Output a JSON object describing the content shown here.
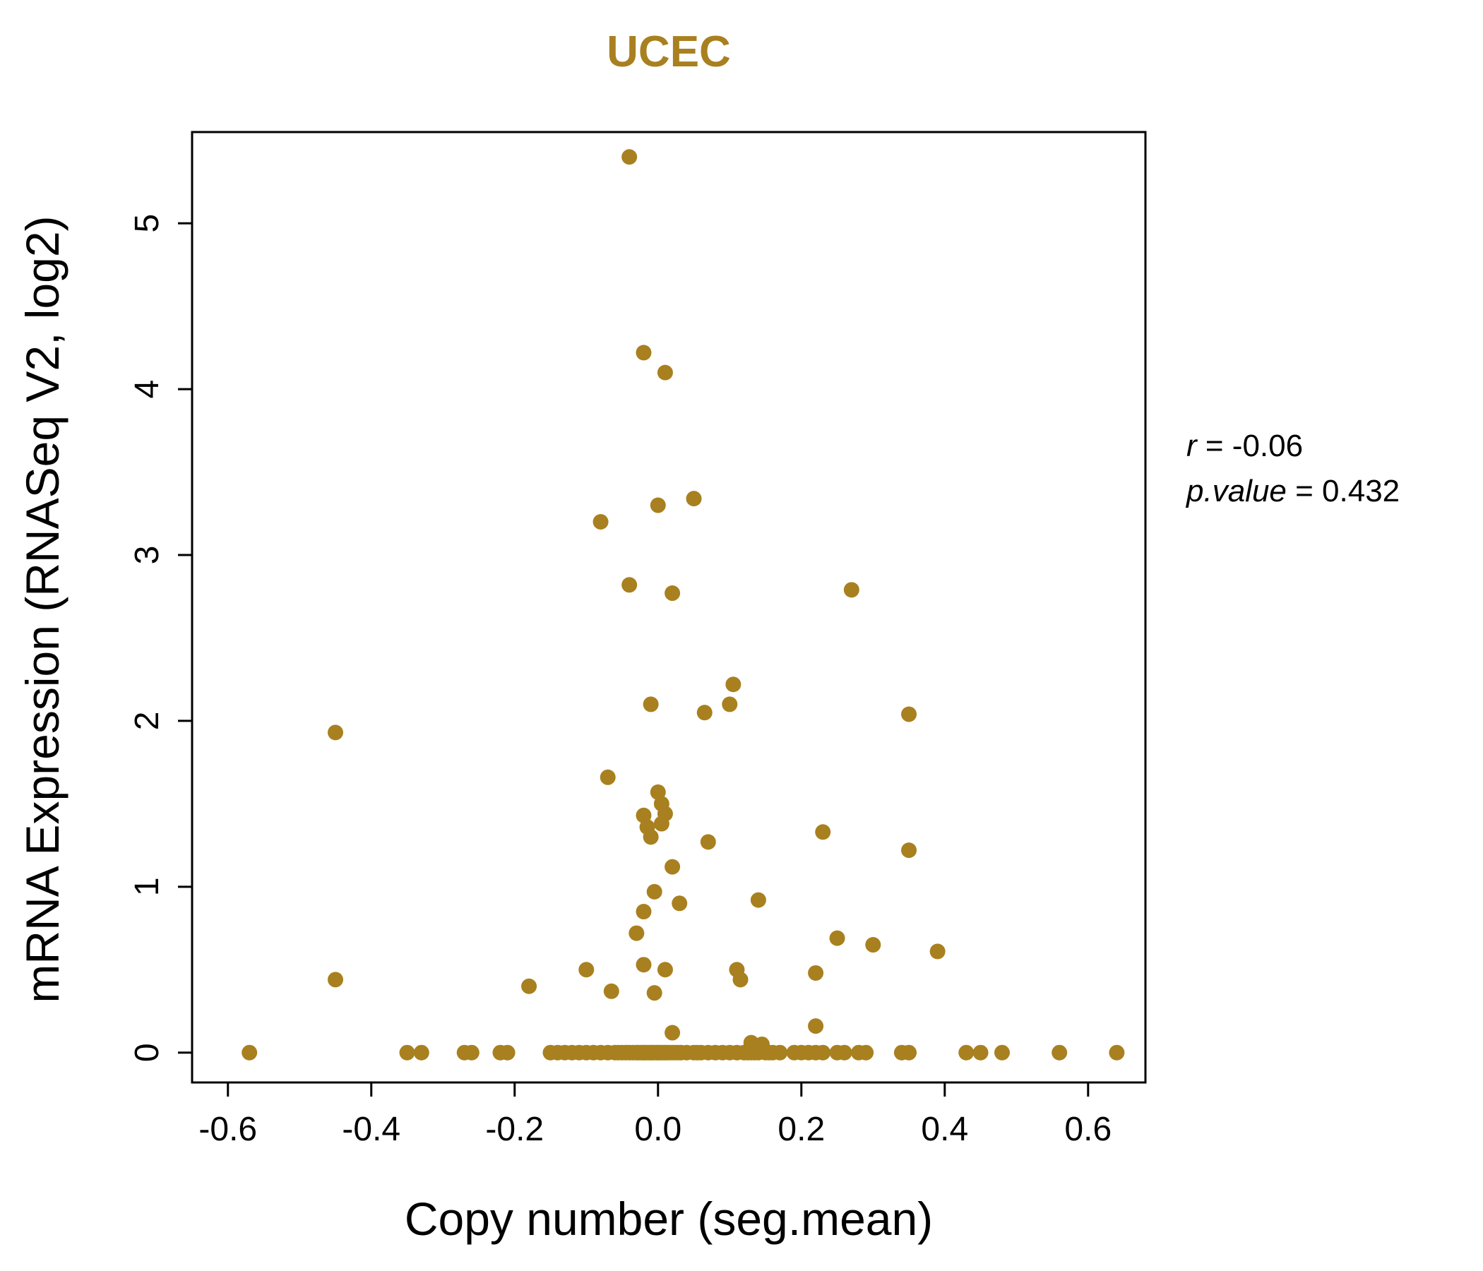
{
  "title": "UCEC",
  "accent_color": "#A8801F",
  "annotation": {
    "r_label": "r",
    "r_value": " = -0.06",
    "p_label": "p.value",
    "p_value": " = 0.432"
  },
  "chart_data": {
    "type": "scatter",
    "title": "UCEC",
    "xlabel": "Copy number (seg.mean)",
    "ylabel": "mRNA Expression (RNASeq V2, log2)",
    "xlim": [
      -0.65,
      0.68
    ],
    "ylim": [
      -0.18,
      5.55
    ],
    "x_tick_values": [
      -0.6,
      -0.4,
      -0.2,
      0.0,
      0.2,
      0.4,
      0.6
    ],
    "x_tick_labels": [
      "-0.6",
      "-0.4",
      "-0.2",
      "0.0",
      "0.2",
      "0.4",
      "0.6"
    ],
    "y_tick_values": [
      0,
      1,
      2,
      3,
      4,
      5
    ],
    "y_tick_labels": [
      "0",
      "1",
      "2",
      "3",
      "4",
      "5"
    ],
    "grid": false,
    "legend": "none",
    "point_color": "#A8801F",
    "correlation_r": -0.06,
    "p_value": 0.432,
    "points": [
      [
        -0.04,
        5.4
      ],
      [
        -0.02,
        4.22
      ],
      [
        0.01,
        4.1
      ],
      [
        0.05,
        3.34
      ],
      [
        0.0,
        3.3
      ],
      [
        -0.08,
        3.2
      ],
      [
        -0.04,
        2.82
      ],
      [
        0.27,
        2.79
      ],
      [
        0.02,
        2.77
      ],
      [
        0.105,
        2.22
      ],
      [
        0.1,
        2.1
      ],
      [
        -0.01,
        2.1
      ],
      [
        0.065,
        2.05
      ],
      [
        0.35,
        2.04
      ],
      [
        -0.45,
        1.93
      ],
      [
        -0.07,
        1.66
      ],
      [
        0.0,
        1.57
      ],
      [
        0.005,
        1.5
      ],
      [
        0.01,
        1.44
      ],
      [
        -0.02,
        1.43
      ],
      [
        0.005,
        1.38
      ],
      [
        -0.015,
        1.36
      ],
      [
        0.23,
        1.33
      ],
      [
        -0.01,
        1.3
      ],
      [
        0.07,
        1.27
      ],
      [
        0.35,
        1.22
      ],
      [
        0.02,
        1.12
      ],
      [
        -0.005,
        0.97
      ],
      [
        0.14,
        0.92
      ],
      [
        0.03,
        0.9
      ],
      [
        -0.02,
        0.85
      ],
      [
        -0.03,
        0.72
      ],
      [
        0.25,
        0.69
      ],
      [
        0.3,
        0.65
      ],
      [
        0.39,
        0.61
      ],
      [
        -0.02,
        0.53
      ],
      [
        -0.1,
        0.5
      ],
      [
        0.01,
        0.5
      ],
      [
        0.11,
        0.5
      ],
      [
        0.22,
        0.48
      ],
      [
        0.115,
        0.44
      ],
      [
        -0.45,
        0.44
      ],
      [
        -0.18,
        0.4
      ],
      [
        -0.065,
        0.37
      ],
      [
        -0.005,
        0.36
      ],
      [
        0.22,
        0.16
      ],
      [
        0.02,
        0.12
      ],
      [
        0.13,
        0.06
      ],
      [
        0.145,
        0.05
      ],
      [
        -0.57,
        0
      ],
      [
        -0.35,
        0
      ],
      [
        -0.33,
        0
      ],
      [
        -0.27,
        0
      ],
      [
        -0.26,
        0
      ],
      [
        -0.22,
        0
      ],
      [
        -0.21,
        0
      ],
      [
        -0.15,
        0
      ],
      [
        -0.14,
        0
      ],
      [
        -0.13,
        0
      ],
      [
        -0.12,
        0
      ],
      [
        -0.11,
        0
      ],
      [
        -0.1,
        0
      ],
      [
        -0.09,
        0
      ],
      [
        -0.08,
        0
      ],
      [
        -0.07,
        0
      ],
      [
        -0.06,
        0
      ],
      [
        -0.055,
        0
      ],
      [
        -0.05,
        0
      ],
      [
        -0.045,
        0
      ],
      [
        -0.04,
        0
      ],
      [
        -0.035,
        0
      ],
      [
        -0.03,
        0
      ],
      [
        -0.028,
        0
      ],
      [
        -0.025,
        0
      ],
      [
        -0.022,
        0
      ],
      [
        -0.02,
        0
      ],
      [
        -0.018,
        0
      ],
      [
        -0.015,
        0
      ],
      [
        -0.012,
        0
      ],
      [
        -0.01,
        0
      ],
      [
        -0.008,
        0
      ],
      [
        -0.005,
        0
      ],
      [
        -0.002,
        0
      ],
      [
        0.0,
        0
      ],
      [
        0.002,
        0
      ],
      [
        0.005,
        0
      ],
      [
        0.008,
        0
      ],
      [
        0.01,
        0
      ],
      [
        0.013,
        0
      ],
      [
        0.016,
        0
      ],
      [
        0.02,
        0
      ],
      [
        0.024,
        0
      ],
      [
        0.028,
        0
      ],
      [
        0.032,
        0
      ],
      [
        0.04,
        0
      ],
      [
        0.05,
        0
      ],
      [
        0.055,
        0
      ],
      [
        0.06,
        0
      ],
      [
        0.07,
        0
      ],
      [
        0.08,
        0
      ],
      [
        0.09,
        0
      ],
      [
        0.1,
        0
      ],
      [
        0.11,
        0
      ],
      [
        0.12,
        0
      ],
      [
        0.125,
        0
      ],
      [
        0.13,
        0
      ],
      [
        0.135,
        0
      ],
      [
        0.14,
        0
      ],
      [
        0.15,
        0
      ],
      [
        0.155,
        0
      ],
      [
        0.16,
        0
      ],
      [
        0.17,
        0
      ],
      [
        0.19,
        0
      ],
      [
        0.2,
        0
      ],
      [
        0.21,
        0
      ],
      [
        0.22,
        0
      ],
      [
        0.23,
        0
      ],
      [
        0.25,
        0
      ],
      [
        0.26,
        0
      ],
      [
        0.28,
        0
      ],
      [
        0.29,
        0
      ],
      [
        0.34,
        0
      ],
      [
        0.35,
        0
      ],
      [
        0.43,
        0
      ],
      [
        0.45,
        0
      ],
      [
        0.48,
        0
      ],
      [
        0.56,
        0
      ],
      [
        0.64,
        0
      ]
    ]
  }
}
